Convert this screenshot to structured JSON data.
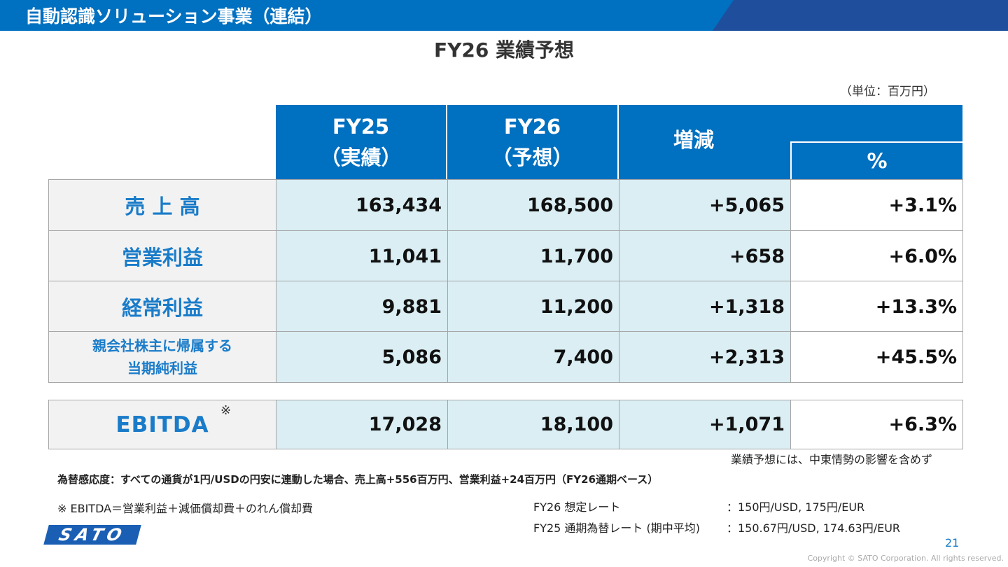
{
  "header": {
    "title": "自動認識ソリューション事業（連結）"
  },
  "subtitle": "FY26 業績予想",
  "unit": "（単位：百万円）",
  "table": {
    "columns": [
      {
        "line1": "FY25",
        "line2": "（実績）"
      },
      {
        "line1": "FY26",
        "line2": "（予想）"
      }
    ],
    "change": "増減",
    "pct": "%",
    "rows": [
      {
        "label": [
          "売 上 高"
        ],
        "values": [
          "163,434",
          "168,500",
          "+5,065",
          "+3.1%"
        ]
      },
      {
        "label": [
          "営業利益"
        ],
        "values": [
          "11,041",
          "11,700",
          "+658",
          "+6.0%"
        ]
      },
      {
        "label": [
          "経常利益"
        ],
        "values": [
          "9,881",
          "11,200",
          "+1,318",
          "+13.3%"
        ]
      },
      {
        "label": [
          "親会社株主に帰属する",
          "当期純利益"
        ],
        "values": [
          "5,086",
          "7,400",
          "+2,313",
          "+45.5%"
        ]
      }
    ],
    "ebitda": {
      "label": "EBITDA",
      "mark": "※",
      "values": [
        "17,028",
        "18,100",
        "+1,071",
        "+6.3%"
      ]
    }
  },
  "notes": {
    "right": "業績予想には、中東情勢の影響を含めず",
    "fx": "為替感応度：すべての通貨が1円/USDの円安に連動した場合、売上高+556百万円、営業利益+24百万円（FY26通期ベース）",
    "ebitda_def": "※ EBITDA＝営業利益＋減価償却費＋のれん償却費",
    "rates": [
      {
        "label": "FY26 想定レート",
        "value": "：150円/USD, 175円/EUR"
      },
      {
        "label": "FY25 通期為替レート (期中平均)",
        "value": "：150.67円/USD, 174.63円/EUR"
      }
    ]
  },
  "footer": {
    "logo": "SATO",
    "page": "21",
    "copyright": "Copyright © SATO Corporation. All rights reserved."
  }
}
